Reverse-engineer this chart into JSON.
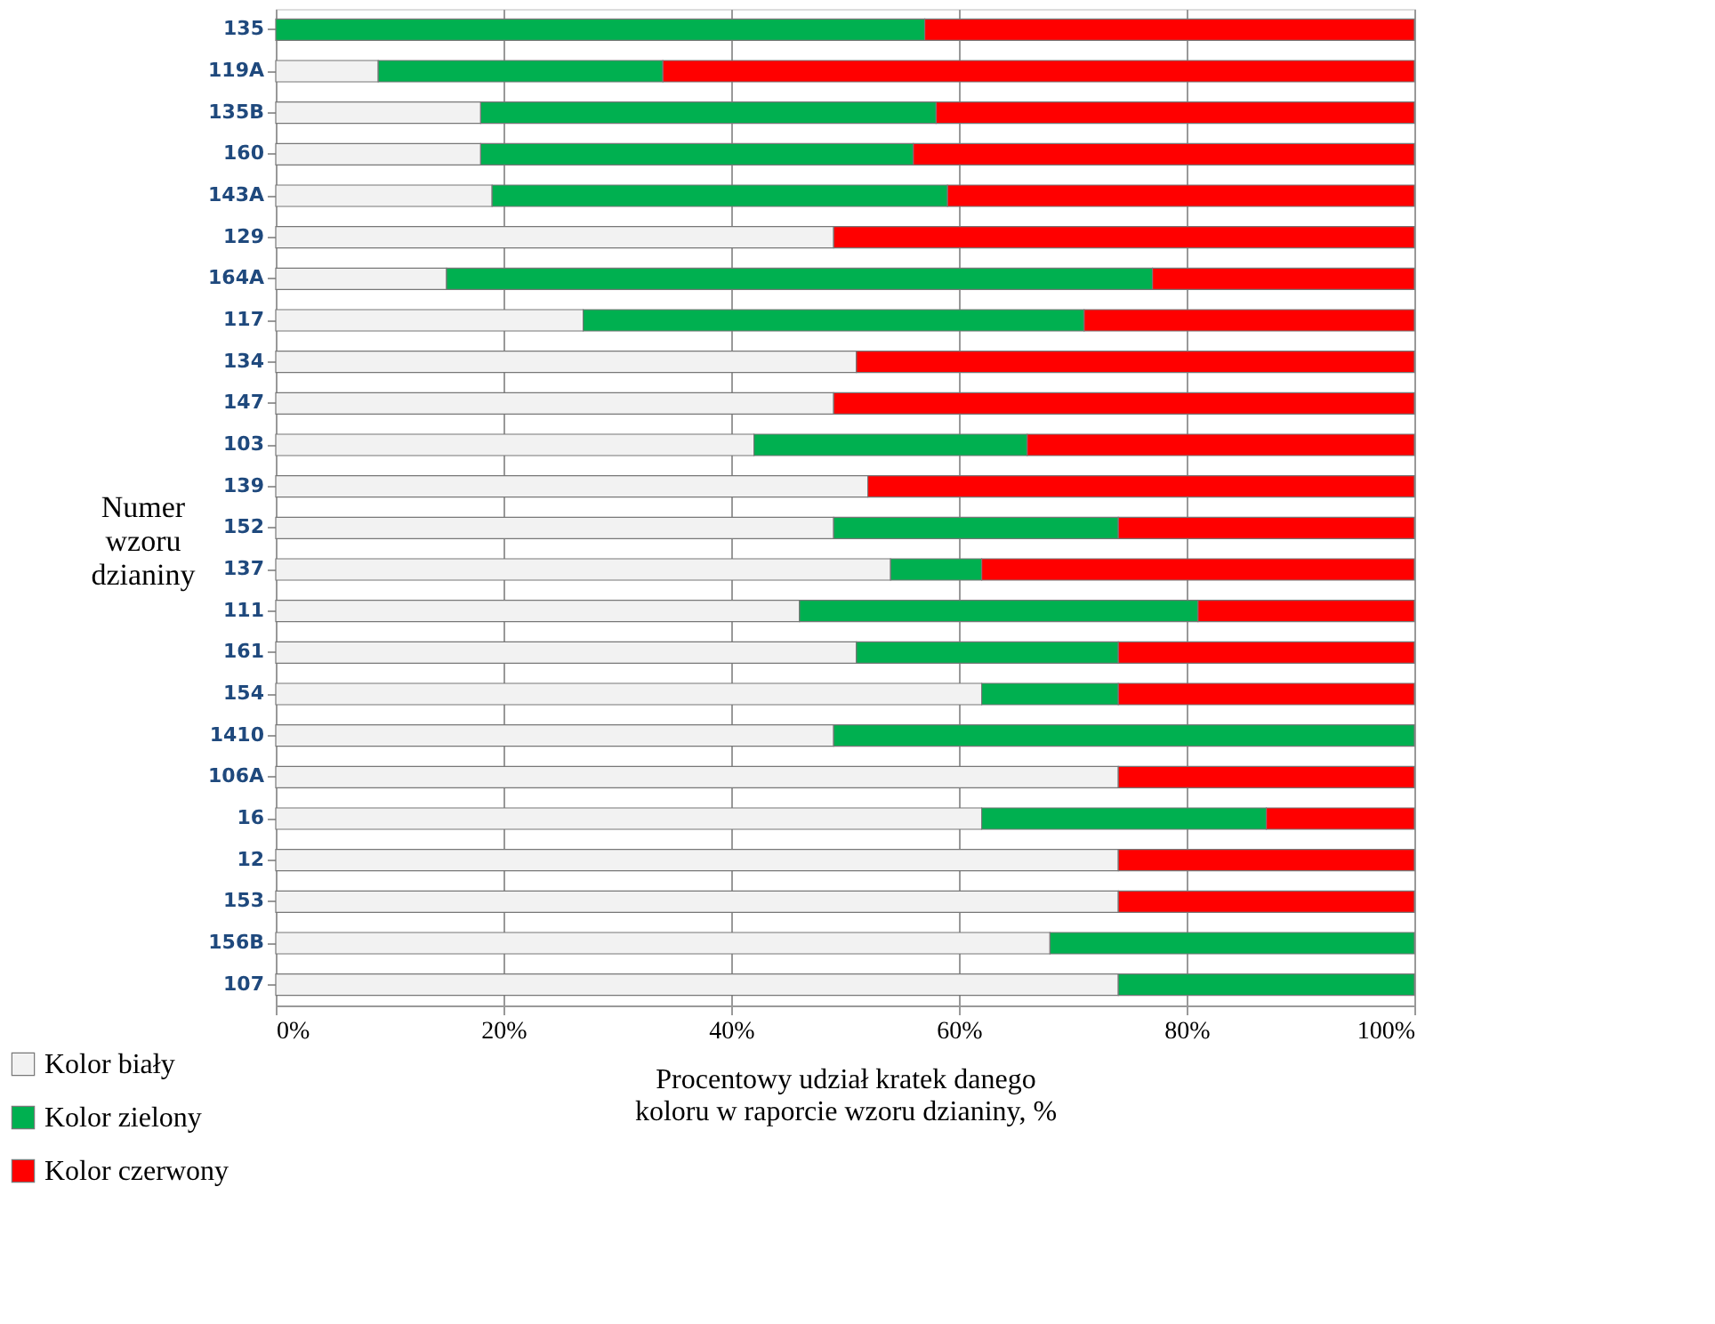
{
  "chart_data": {
    "type": "bar",
    "orientation": "horizontal",
    "stacked": true,
    "ylabel": "Numer wzoru dzianiny",
    "xlabel": "Procentowy udział kratek danego koloru w raporcie wzoru dzianiny, %",
    "categories": [
      "135",
      "119A",
      "135B",
      "160",
      "143A",
      "129",
      "164A",
      "117",
      "134",
      "147",
      "103",
      "139",
      "152",
      "137",
      "111",
      "161",
      "154",
      "1410",
      "106A",
      "16",
      "12",
      "153",
      "156B",
      "107"
    ],
    "series": [
      {
        "name": "Kolor biały",
        "color": "#f2f2f2",
        "values": [
          0,
          9,
          18,
          18,
          19,
          49,
          15,
          27,
          51,
          49,
          42,
          52,
          49,
          54,
          46,
          51,
          62,
          49,
          74,
          62,
          74,
          74,
          68,
          74
        ]
      },
      {
        "name": "Kolor zielony",
        "color": "#00b050",
        "values": [
          57,
          25,
          40,
          38,
          40,
          0,
          62,
          44,
          0,
          0,
          24,
          0,
          25,
          8,
          35,
          23,
          12,
          51,
          0,
          25,
          0,
          0,
          32,
          26
        ]
      },
      {
        "name": "Kolor czerwony",
        "color": "#ff0000",
        "values": [
          43,
          66,
          42,
          44,
          41,
          51,
          23,
          29,
          49,
          51,
          34,
          48,
          26,
          38,
          19,
          26,
          26,
          0,
          26,
          13,
          26,
          26,
          0,
          0
        ]
      }
    ],
    "xlim": [
      0,
      100
    ],
    "xticks": [
      {
        "value": 0,
        "label": "0%"
      },
      {
        "value": 20,
        "label": "20%"
      },
      {
        "value": 40,
        "label": "40%"
      },
      {
        "value": 60,
        "label": "60%"
      },
      {
        "value": 80,
        "label": "80%"
      },
      {
        "value": 100,
        "label": "100%"
      }
    ],
    "grid": "x",
    "legend": "bottom left"
  }
}
